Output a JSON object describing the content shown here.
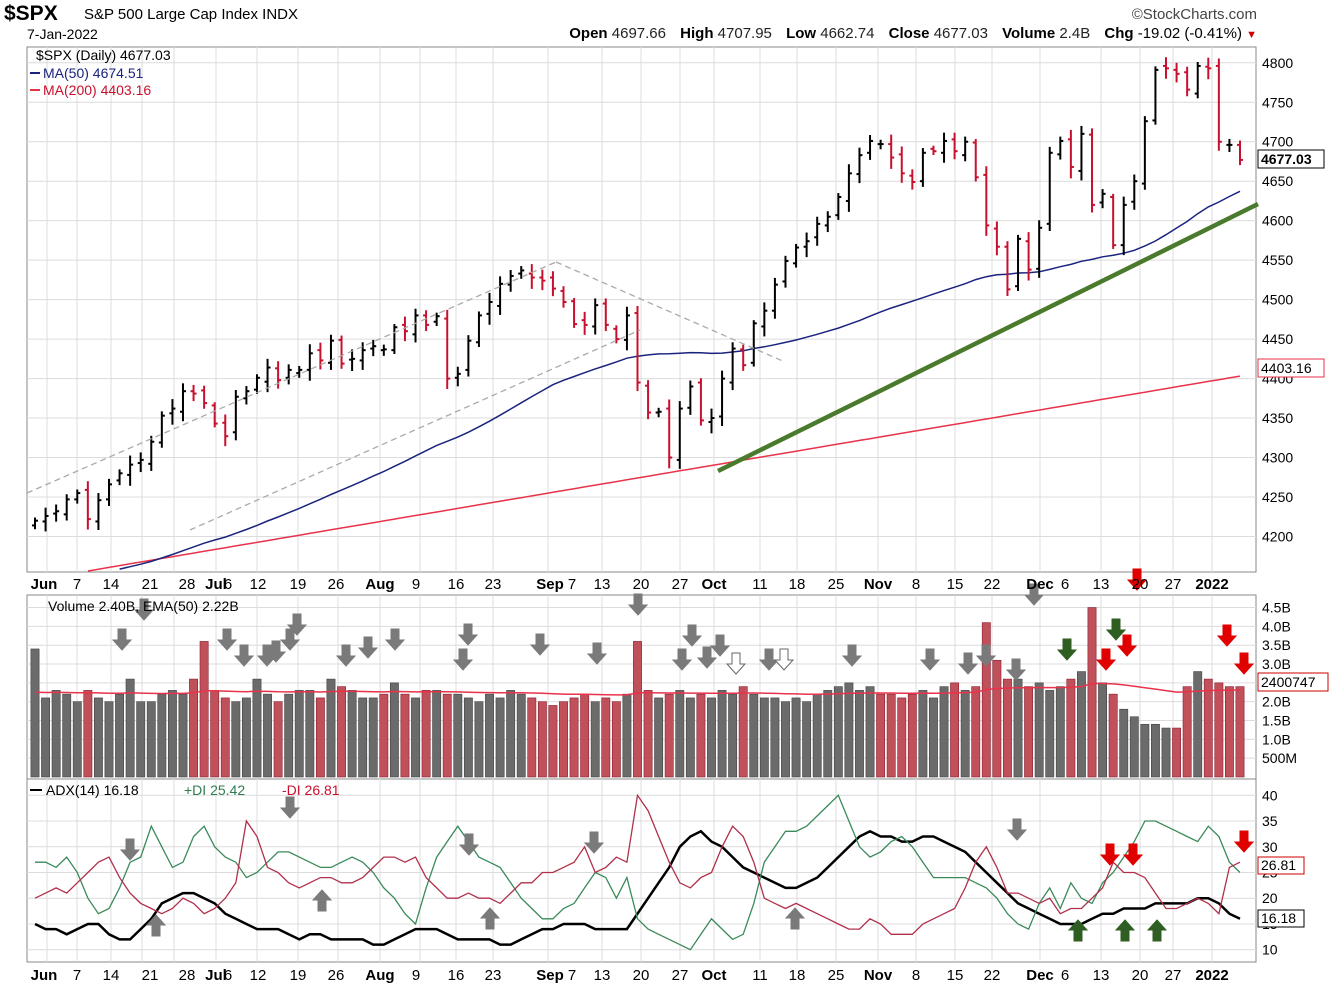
{
  "header": {
    "symbol": "$SPX",
    "name": "S&P 500 Large Cap Index INDX",
    "date": "7-Jan-2022",
    "brand": "©StockCharts.com",
    "open_label": "Open",
    "open": "4697.66",
    "high_label": "High",
    "high": "4707.95",
    "low_label": "Low",
    "low": "4662.74",
    "close_label": "Close",
    "close": "4677.03",
    "volume_label": "Volume",
    "volume": "2.4B",
    "chg_label": "Chg",
    "chg": "-19.02 (-0.41%)"
  },
  "legend": {
    "price": "$SPX (Daily) 4677.03",
    "ma50": "MA(50) 4674.51",
    "ma200": "MA(200) 4403.16",
    "volume": "Volume 2.40B, EMA(50) 2.22B",
    "adx": "ADX(14) 16.18",
    "pdi": "+DI 25.42",
    "mdi": "-DI 26.81"
  },
  "x_axis_labels": [
    "Jun",
    "7",
    "14",
    "21",
    "28",
    "Jul",
    "6",
    "12",
    "19",
    "26",
    "Aug",
    "9",
    "16",
    "23",
    "Sep",
    "7",
    "13",
    "20",
    "27",
    "Oct",
    "11",
    "18",
    "25",
    "Nov",
    "8",
    "15",
    "22",
    "Dec",
    "6",
    "13",
    "20",
    "27",
    "2022"
  ],
  "colors": {
    "up": "#000000",
    "down": "#c8102e",
    "ma50": "#1a237e",
    "ma200": "#e8334a",
    "trend": "#4a7a2c",
    "vol_up": "#6b6b6b",
    "vol_down": "#c0505a"
  },
  "chart_data": [
    {
      "type": "line",
      "title": "$SPX (Daily)",
      "y_ticks": [
        4200,
        4250,
        4300,
        4350,
        4400,
        4450,
        4500,
        4550,
        4600,
        4650,
        4700,
        4750,
        4800
      ],
      "ylim": [
        4155,
        4820
      ],
      "last_close_badge": "4677.03",
      "ma200_badge": "4403.16",
      "series": [
        {
          "name": "$SPX (Daily)",
          "approx_closes": [
            4220,
            4226,
            4232,
            4247,
            4255,
            4222,
            4246,
            4266,
            4280,
            4291,
            4297,
            4320,
            4353,
            4362,
            4384,
            4381,
            4369,
            4343,
            4327,
            4377,
            4384,
            4401,
            4414,
            4398,
            4411,
            4411,
            4432,
            4423,
            4448,
            4419,
            4425,
            4436,
            4441,
            4437,
            4465,
            4460,
            4480,
            4468,
            4479,
            4400,
            4406,
            4448,
            4480,
            4497,
            4520,
            4530,
            4537,
            4528,
            4524,
            4514,
            4497,
            4469,
            4468,
            4493,
            4468,
            4450,
            4480,
            4395,
            4357,
            4358,
            4300,
            4362,
            4390,
            4347,
            4350,
            4400,
            4438,
            4417,
            4470,
            4486,
            4519,
            4549,
            4566,
            4574,
            4596,
            4605,
            4630,
            4660,
            4683,
            4701,
            4697,
            4680,
            4660,
            4649,
            4686,
            4688,
            4701,
            4688,
            4700,
            4655,
            4594,
            4567,
            4513,
            4577,
            4538,
            4591,
            4686,
            4701,
            4668,
            4710,
            4620,
            4634,
            4569,
            4620,
            4650,
            4726,
            4791,
            4793,
            4786,
            4766,
            4796,
            4793,
            4700,
            4696,
            4677
          ]
        },
        {
          "name": "MA(50)",
          "last": 4674.51
        },
        {
          "name": "MA(200)",
          "last": 4403.16
        }
      ]
    },
    {
      "type": "bar",
      "title": "Volume",
      "y_tick_labels": [
        "500M",
        "1.0B",
        "1.5B",
        "2.0B",
        "2.5B",
        "3.0B",
        "3.5B",
        "4.0B",
        "4.5B"
      ],
      "ylim": [
        0,
        4.7
      ],
      "ema_badge": "2400747",
      "series": [
        {
          "name": "Volume",
          "unit": "B",
          "approx_values": [
            3.4,
            2.1,
            2.3,
            2.2,
            2.0,
            2.3,
            2.1,
            2.0,
            2.2,
            2.6,
            2.0,
            2.0,
            2.2,
            2.3,
            2.2,
            2.6,
            3.6,
            2.3,
            2.1,
            2.0,
            2.1,
            2.6,
            2.2,
            2.0,
            2.2,
            2.3,
            2.3,
            2.1,
            2.6,
            2.4,
            2.3,
            2.1,
            2.1,
            2.2,
            2.5,
            2.2,
            2.1,
            2.3,
            2.3,
            2.2,
            2.2,
            2.1,
            2.0,
            2.2,
            2.1,
            2.3,
            2.2,
            2.1,
            2.0,
            1.9,
            2.0,
            2.1,
            2.2,
            2.0,
            2.1,
            2.0,
            2.2,
            3.6,
            2.3,
            2.1,
            2.2,
            2.3,
            2.1,
            2.2,
            2.1,
            2.3,
            2.2,
            2.4,
            2.2,
            2.1,
            2.1,
            2.0,
            2.1,
            2.0,
            2.2,
            2.3,
            2.4,
            2.5,
            2.3,
            2.4,
            2.2,
            2.2,
            2.1,
            2.2,
            2.3,
            2.1,
            2.4,
            2.5,
            2.3,
            2.4,
            4.1,
            3.1,
            2.6,
            2.6,
            2.4,
            2.5,
            2.3,
            2.4,
            2.6,
            2.8,
            4.5,
            2.5,
            2.2,
            1.8,
            1.6,
            1.4,
            1.4,
            1.3,
            1.3,
            2.4,
            2.8,
            2.6,
            2.5,
            2.4,
            2.4
          ]
        }
      ]
    },
    {
      "type": "line",
      "title": "ADX(14)",
      "y_ticks": [
        10,
        15,
        20,
        25,
        30,
        35,
        40
      ],
      "ylim": [
        8,
        42
      ],
      "badges": [
        "26.81",
        "16.18"
      ],
      "series": [
        {
          "name": "ADX(14)",
          "approx_values": [
            15,
            14,
            14,
            13,
            14,
            15,
            15,
            13,
            12,
            12,
            14,
            16,
            19,
            20,
            21,
            21,
            20,
            19,
            17,
            16,
            15,
            14,
            14,
            14,
            13,
            12,
            13,
            13,
            12,
            12,
            12,
            12,
            11,
            11,
            12,
            13,
            14,
            14,
            14,
            13,
            12,
            12,
            12,
            12,
            11,
            11,
            12,
            13,
            14,
            14,
            15,
            15,
            15,
            14,
            14,
            14,
            14,
            17,
            20,
            23,
            26,
            30,
            32,
            33,
            31,
            30,
            28,
            26,
            25,
            24,
            23,
            22,
            22,
            23,
            24,
            26,
            28,
            30,
            32,
            33,
            32,
            32,
            31,
            31,
            32,
            32,
            31,
            30,
            29,
            27,
            25,
            23,
            21,
            19,
            18,
            17,
            16,
            15,
            15,
            15,
            16,
            17,
            17,
            18,
            18,
            18,
            19,
            19,
            19,
            19,
            20,
            20,
            19,
            17,
            16
          ]
        },
        {
          "name": "+DI",
          "approx_values": [
            27,
            27,
            26,
            28,
            25,
            20,
            17,
            18,
            22,
            27,
            28,
            34,
            30,
            26,
            27,
            32,
            34,
            30,
            28,
            27,
            24,
            25,
            27,
            29,
            29,
            28,
            27,
            26,
            26,
            27,
            28,
            27,
            25,
            22,
            20,
            17,
            15,
            22,
            28,
            31,
            34,
            31,
            28,
            27,
            26,
            23,
            20,
            18,
            16,
            16,
            18,
            19,
            22,
            25,
            24,
            20,
            24,
            16,
            14,
            13,
            12,
            11,
            10,
            13,
            16,
            14,
            12,
            13,
            19,
            27,
            30,
            33,
            33,
            34,
            36,
            38,
            40,
            35,
            30,
            28,
            29,
            31,
            32,
            30,
            27,
            24,
            24,
            24,
            24,
            23,
            22,
            20,
            17,
            15,
            14,
            19,
            22,
            18,
            23,
            20,
            19,
            23,
            25,
            28,
            31,
            35,
            35,
            34,
            33,
            32,
            31,
            34,
            32,
            27,
            25
          ]
        },
        {
          "name": "-DI",
          "approx_values": [
            20,
            21,
            22,
            21,
            23,
            25,
            27,
            28,
            24,
            21,
            19,
            18,
            17,
            18,
            20,
            19,
            17,
            18,
            20,
            23,
            35,
            32,
            26,
            25,
            23,
            22,
            23,
            24,
            24,
            23,
            23,
            24,
            26,
            28,
            28,
            27,
            28,
            24,
            22,
            20,
            20,
            21,
            20,
            20,
            19,
            21,
            23,
            23,
            25,
            25,
            26,
            27,
            30,
            25,
            26,
            28,
            27,
            40,
            37,
            32,
            27,
            23,
            22,
            24,
            25,
            30,
            34,
            32,
            27,
            20,
            19,
            18,
            19,
            18,
            17,
            16,
            15,
            14,
            14,
            16,
            15,
            13,
            13,
            13,
            15,
            16,
            17,
            18,
            22,
            27,
            30,
            26,
            21,
            21,
            20,
            19,
            20,
            17,
            18,
            18,
            20,
            22,
            27,
            25,
            25,
            24,
            21,
            18,
            18,
            19,
            20,
            19,
            17,
            26,
            27
          ]
        }
      ]
    }
  ]
}
